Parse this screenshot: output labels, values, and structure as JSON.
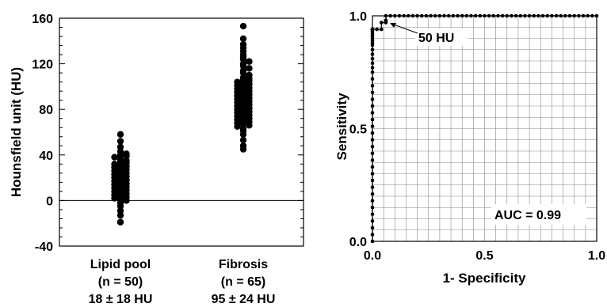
{
  "chart_data": [
    {
      "type": "scatter",
      "subtype": "dot-strip",
      "ylabel": "Hounsfield unit (HU)",
      "ylim": [
        -40,
        160
      ],
      "yticks": [
        -40,
        0,
        40,
        80,
        120,
        160
      ],
      "reference_line_y": 0,
      "groups": [
        {
          "label": "Lipid pool",
          "n_label": "(n = 50)",
          "summary": "18 ± 18 HU",
          "values": [
            58,
            52,
            47,
            43,
            41,
            40,
            39,
            38,
            36,
            35,
            34,
            33,
            32,
            31,
            30,
            29,
            28,
            27,
            26,
            25,
            24,
            23,
            22,
            21,
            20,
            19,
            18,
            17,
            16,
            15,
            14,
            13,
            12,
            11,
            10,
            9,
            8,
            7,
            6,
            5,
            4,
            3,
            2,
            1,
            0,
            -2,
            -5,
            -9,
            -13,
            -19
          ]
        },
        {
          "label": "Fibrosis",
          "n_label": "(n = 65)",
          "summary": "95 ± 24 HU",
          "values": [
            153,
            142,
            137,
            134,
            131,
            128,
            126,
            124,
            122,
            120,
            118,
            116,
            114,
            112,
            110,
            108,
            107,
            106,
            105,
            104,
            103,
            102,
            101,
            100,
            99,
            98,
            97,
            96,
            95,
            94,
            93,
            92,
            91,
            90,
            89,
            88,
            87,
            86,
            85,
            84,
            83,
            82,
            81,
            80,
            79,
            78,
            77,
            76,
            75,
            74,
            73,
            72,
            71,
            70,
            69,
            68,
            67,
            66,
            65,
            63,
            61,
            58,
            53,
            48,
            45
          ]
        }
      ]
    },
    {
      "type": "line",
      "subtype": "roc",
      "xlabel": "1- Specificity",
      "ylabel": "Sensitivity",
      "xlim": [
        0,
        1
      ],
      "ylim": [
        0,
        1
      ],
      "xticks": [
        "0.0",
        "0.5",
        "1.0"
      ],
      "yticks": [
        "0.0",
        "0.5",
        "1.0"
      ],
      "grid": true,
      "annotation": "50 HU",
      "auc_label": "AUC = 0.99",
      "x": [
        0,
        0,
        0,
        0,
        0,
        0,
        0,
        0,
        0,
        0,
        0,
        0,
        0,
        0,
        0,
        0,
        0,
        0,
        0,
        0,
        0,
        0,
        0,
        0,
        0,
        0,
        0,
        0,
        0,
        0,
        0,
        0,
        0,
        0,
        0,
        0,
        0,
        0,
        0,
        0,
        0,
        0,
        0,
        0,
        0,
        0,
        0,
        0,
        0,
        0.02,
        0.04,
        0.04,
        0.06,
        0.06,
        0.06,
        0.08,
        0.1,
        0.12,
        0.14,
        0.16,
        0.18,
        0.2,
        0.22,
        0.24,
        0.26,
        0.28,
        0.3,
        0.32,
        0.34,
        0.36,
        0.38,
        0.4,
        0.42,
        0.44,
        0.46,
        0.48,
        0.5,
        0.52,
        0.54,
        0.56,
        0.58,
        0.6,
        0.62,
        0.64,
        0.66,
        0.68,
        0.7,
        0.72,
        0.74,
        0.76,
        0.78,
        0.8,
        0.82,
        0.84,
        0.86,
        0.88,
        0.9,
        0.92,
        0.94,
        0.96,
        0.98,
        1.0
      ],
      "y": [
        0,
        0.03,
        0.06,
        0.09,
        0.12,
        0.15,
        0.18,
        0.21,
        0.24,
        0.27,
        0.3,
        0.33,
        0.36,
        0.39,
        0.42,
        0.45,
        0.48,
        0.51,
        0.54,
        0.57,
        0.6,
        0.63,
        0.66,
        0.69,
        0.72,
        0.75,
        0.77,
        0.79,
        0.81,
        0.83,
        0.85,
        0.87,
        0.88,
        0.89,
        0.9,
        0.91,
        0.92,
        0.93,
        0.94,
        0.94,
        0.94,
        0.94,
        0.94,
        0.94,
        0.94,
        0.94,
        0.94,
        0.94,
        0.94,
        0.94,
        0.94,
        0.97,
        0.97,
        0.98,
        1.0,
        1.0,
        1.0,
        1.0,
        1.0,
        1.0,
        1.0,
        1.0,
        1.0,
        1.0,
        1.0,
        1.0,
        1.0,
        1.0,
        1.0,
        1.0,
        1.0,
        1.0,
        1.0,
        1.0,
        1.0,
        1.0,
        1.0,
        1.0,
        1.0,
        1.0,
        1.0,
        1.0,
        1.0,
        1.0,
        1.0,
        1.0,
        1.0,
        1.0,
        1.0,
        1.0,
        1.0,
        1.0,
        1.0,
        1.0,
        1.0,
        1.0,
        1.0,
        1.0,
        1.0,
        1.0,
        1.0,
        1.0
      ]
    }
  ]
}
